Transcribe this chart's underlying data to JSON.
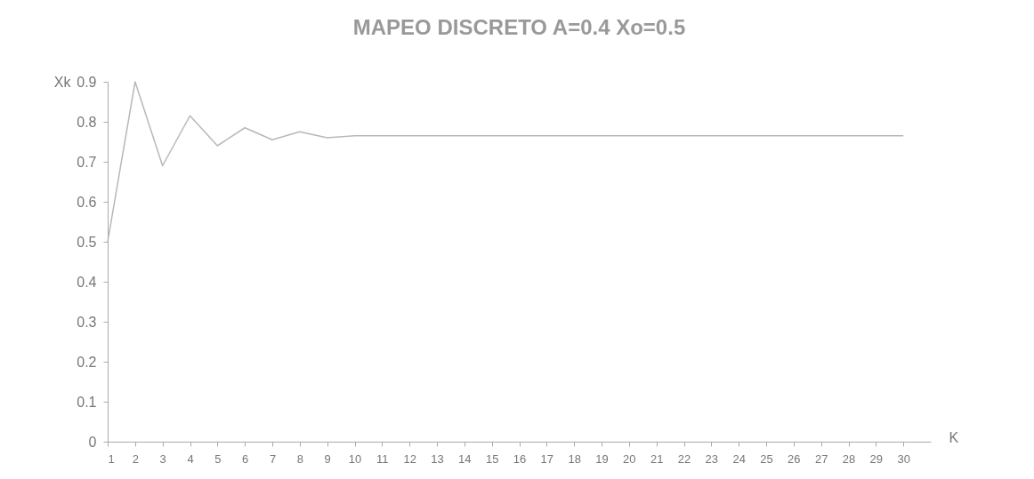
{
  "chart_data": {
    "type": "line",
    "title": "MAPEO DISCRETO A=0.4 Xo=0.5",
    "xlabel": "K",
    "ylabel": "Xk",
    "x": [
      1,
      2,
      3,
      4,
      5,
      6,
      7,
      8,
      9,
      10,
      11,
      12,
      13,
      14,
      15,
      16,
      17,
      18,
      19,
      20,
      21,
      22,
      23,
      24,
      25,
      26,
      27,
      28,
      29,
      30
    ],
    "series": [
      {
        "color": "#b8b8b8",
        "values": [
          0.5,
          0.9,
          0.69,
          0.815,
          0.74,
          0.785,
          0.755,
          0.775,
          0.76,
          0.765,
          0.765,
          0.765,
          0.765,
          0.765,
          0.765,
          0.765,
          0.765,
          0.765,
          0.765,
          0.765,
          0.765,
          0.765,
          0.765,
          0.765,
          0.765,
          0.765,
          0.765,
          0.765,
          0.765,
          0.765
        ]
      }
    ],
    "xlim": [
      1,
      31
    ],
    "xticks": [
      1,
      2,
      3,
      4,
      5,
      6,
      7,
      8,
      9,
      10,
      11,
      12,
      13,
      14,
      15,
      16,
      17,
      18,
      19,
      20,
      21,
      22,
      23,
      24,
      25,
      26,
      27,
      28,
      29,
      30
    ],
    "ylim": [
      0,
      0.9
    ],
    "yticks": [
      0,
      0.1,
      0.2,
      0.3,
      0.4,
      0.5,
      0.6,
      0.7,
      0.8,
      0.9
    ],
    "grid": false,
    "marker": "none",
    "line_style": "solid"
  }
}
